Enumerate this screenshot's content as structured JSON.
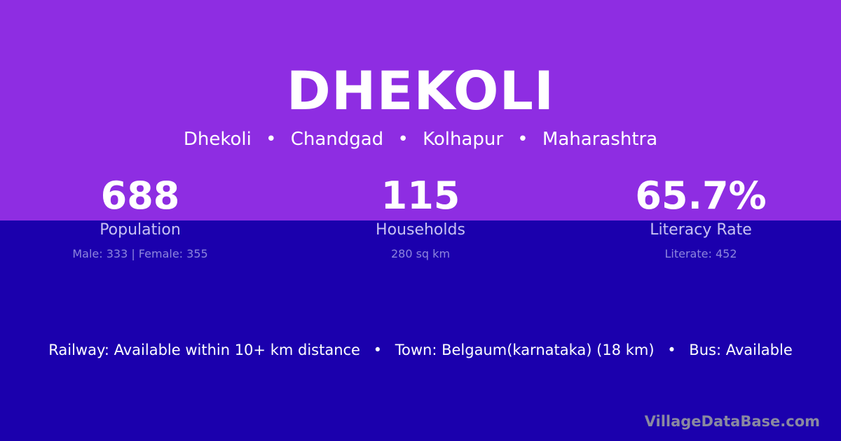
{
  "colors": {
    "top_band": "#8e2de2",
    "bottom_band": "#1b00ad"
  },
  "title": "DHEKOLI",
  "breadcrumb": [
    "Dhekoli",
    "Chandgad",
    "Kolhapur",
    "Maharashtra"
  ],
  "breadcrumb_separator": "•",
  "stats": [
    {
      "value": "688",
      "label": "Population",
      "detail": "Male: 333 | Female: 355"
    },
    {
      "value": "115",
      "label": "Households",
      "detail": "280 sq km"
    },
    {
      "value": "65.7%",
      "label": "Literacy Rate",
      "detail": "Literate: 452"
    }
  ],
  "info": [
    "Railway: Available within 10+ km distance",
    "Town: Belgaum(karnataka) (18 km)",
    "Bus: Available"
  ],
  "watermark": "VillageDataBase.com"
}
